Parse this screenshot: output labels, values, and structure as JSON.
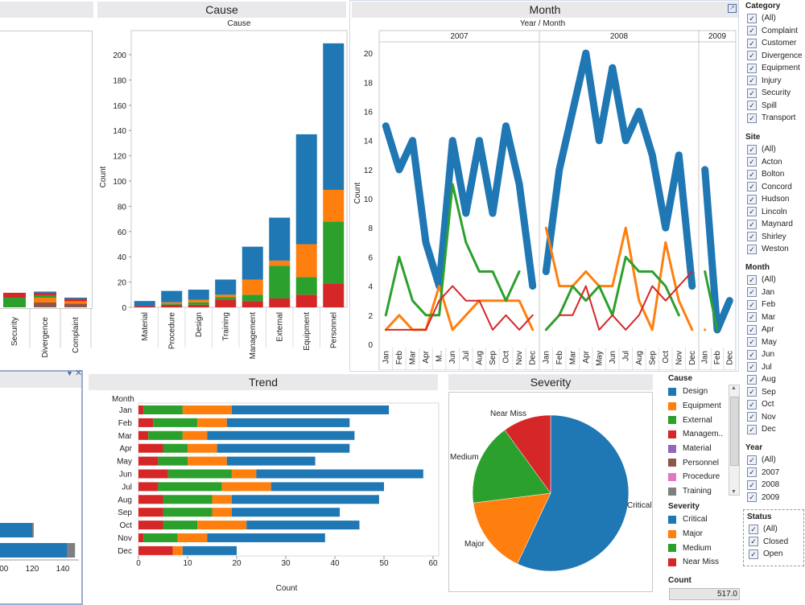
{
  "panels": {
    "cause": {
      "title": "Cause",
      "subtitle": "Cause",
      "ylabel": "Count"
    },
    "month": {
      "title": "Month",
      "header": "Year  /  Month",
      "ylabel": "Count",
      "years": [
        "2007",
        "2008",
        "2009"
      ]
    },
    "trend": {
      "title": "Trend",
      "row_header": "Month",
      "xlabel": "Count"
    },
    "severity": {
      "title": "Severity"
    }
  },
  "chart_data": [
    {
      "type": "bar",
      "name": "category_partial",
      "categories": [
        "Security",
        "Divergence",
        "Complaint"
      ],
      "series": [
        {
          "name": "Personnel",
          "values": [
            0,
            4,
            3
          ]
        },
        {
          "name": "Equipment",
          "values": [
            0,
            4,
            2
          ]
        },
        {
          "name": "External",
          "values": [
            8,
            2,
            0
          ]
        },
        {
          "name": "Management",
          "values": [
            4,
            2,
            2
          ]
        },
        {
          "name": "Design",
          "values": [
            0,
            1,
            1
          ]
        }
      ],
      "ylim": [
        0,
        210
      ]
    },
    {
      "type": "bar",
      "name": "cause",
      "title": "Cause",
      "ylabel": "Count",
      "ylim": [
        0,
        210
      ],
      "yticks": [
        0,
        20,
        40,
        60,
        80,
        100,
        120,
        140,
        160,
        180,
        200
      ],
      "categories": [
        "Material",
        "Procedure",
        "Design",
        "Training",
        "Management",
        "External",
        "Equipment",
        "Personnel"
      ],
      "series": [
        {
          "name": "Critical",
          "values": [
            4,
            9,
            8,
            12,
            26,
            34,
            87,
            116
          ]
        },
        {
          "name": "Major",
          "values": [
            0,
            1,
            2,
            2,
            12,
            4,
            26,
            25
          ]
        },
        {
          "name": "Medium",
          "values": [
            0,
            1,
            2,
            2,
            5,
            26,
            14,
            49
          ]
        },
        {
          "name": "Near Miss",
          "values": [
            1,
            2,
            2,
            6,
            5,
            7,
            10,
            19
          ]
        }
      ]
    },
    {
      "type": "line",
      "name": "month",
      "title": "Month",
      "ylabel": "Count",
      "ylim": [
        0,
        21
      ],
      "yticks": [
        0,
        2,
        4,
        6,
        8,
        10,
        12,
        14,
        16,
        18,
        20
      ],
      "years": [
        "2007",
        "2008",
        "2009"
      ],
      "xlabels": [
        [
          "Jan",
          "Feb",
          "Mar",
          "Apr",
          "M..",
          "Jun",
          "Jul",
          "Aug",
          "Sep",
          "Oct",
          "Nov",
          "Dec"
        ],
        [
          "Jan",
          "Feb",
          "Mar",
          "Apr",
          "May",
          "Jun",
          "Jul",
          "Aug",
          "Sep",
          "Oct",
          "Nov",
          "Dec"
        ],
        [
          "Jan",
          "Feb",
          "Dec"
        ]
      ],
      "series": [
        {
          "name": "Critical",
          "color": "#1f77b4",
          "width": 9,
          "values": [
            [
              15,
              12,
              14,
              7,
              4,
              14,
              9,
              14,
              9,
              15,
              11,
              4
            ],
            [
              5,
              12,
              16,
              20,
              14,
              19,
              14,
              16,
              13,
              8,
              13,
              4
            ],
            [
              12,
              1,
              3
            ]
          ]
        },
        {
          "name": "Major",
          "color": "#ff7f0e",
          "width": 3,
          "values": [
            [
              1,
              2,
              1,
              1,
              4,
              1,
              2,
              3,
              3,
              3,
              3,
              1
            ],
            [
              8,
              4,
              4,
              5,
              4,
              4,
              8,
              3,
              1,
              7,
              3,
              1
            ],
            [
              1,
              null,
              null
            ]
          ]
        },
        {
          "name": "Medium",
          "color": "#2ca02c",
          "width": 3,
          "values": [
            [
              2,
              6,
              3,
              2,
              2,
              11,
              7,
              5,
              5,
              3,
              5,
              null
            ],
            [
              1,
              2,
              4,
              3,
              4,
              2,
              6,
              5,
              5,
              4,
              2,
              null
            ],
            [
              5,
              1,
              null
            ]
          ]
        },
        {
          "name": "Near Miss",
          "color": "#d62728",
          "width": 2,
          "values": [
            [
              1,
              1,
              1,
              1,
              3,
              4,
              3,
              3,
              1,
              2,
              1,
              2
            ],
            [
              null,
              2,
              2,
              4,
              1,
              2,
              1,
              2,
              4,
              3,
              4,
              5
            ],
            [
              null,
              null,
              null
            ]
          ]
        }
      ]
    },
    {
      "type": "bar",
      "name": "trend",
      "title": "Trend",
      "xlabel": "Count",
      "xlim": [
        0,
        60
      ],
      "xticks": [
        0,
        10,
        20,
        30,
        40,
        50,
        60
      ],
      "categories": [
        "Jan",
        "Feb",
        "Mar",
        "Apr",
        "May",
        "Jun",
        "Jul",
        "Aug",
        "Sep",
        "Oct",
        "Nov",
        "Dec"
      ],
      "series": [
        {
          "name": "Near Miss",
          "values": [
            1,
            3,
            2,
            5,
            4,
            6,
            4,
            5,
            5,
            5,
            1,
            7
          ]
        },
        {
          "name": "Medium",
          "values": [
            8,
            9,
            7,
            5,
            6,
            13,
            13,
            10,
            10,
            7,
            7,
            0
          ]
        },
        {
          "name": "Major",
          "values": [
            10,
            6,
            5,
            6,
            8,
            5,
            10,
            4,
            4,
            10,
            6,
            2
          ]
        },
        {
          "name": "Critical",
          "values": [
            32,
            25,
            30,
            27,
            18,
            34,
            23,
            30,
            22,
            23,
            24,
            11
          ]
        }
      ]
    },
    {
      "type": "pie",
      "name": "severity",
      "title": "Severity",
      "labels": [
        "Critical",
        "Major",
        "Medium",
        "Near Miss"
      ],
      "values": [
        57,
        16,
        17,
        10
      ]
    },
    {
      "type": "bar",
      "name": "bottom_left_partial",
      "xticks": [
        100,
        120,
        140
      ],
      "series": [
        {
          "name": "Critical",
          "values": [
            120,
            143
          ]
        },
        {
          "name": "Training",
          "values": [
            1,
            5
          ]
        }
      ]
    }
  ],
  "colors": {
    "critical": "#1f77b4",
    "major": "#ff7f0e",
    "medium": "#2ca02c",
    "near_miss": "#d62728",
    "design": "#1f77b4",
    "equipment": "#ff7f0e",
    "external": "#2ca02c",
    "management": "#d62728",
    "material": "#9467bd",
    "personnel": "#8c564b",
    "procedure": "#e377c2",
    "training": "#7f7f7f"
  },
  "filters": {
    "category": {
      "title": "Category",
      "items": [
        "(All)",
        "Complaint",
        "Customer",
        "Divergence",
        "Equipment",
        "Injury",
        "Security",
        "Spill",
        "Transport"
      ]
    },
    "site": {
      "title": "Site",
      "items": [
        "(All)",
        "Acton",
        "Bolton",
        "Concord",
        "Hudson",
        "Lincoln",
        "Maynard",
        "Shirley",
        "Weston"
      ]
    },
    "month": {
      "title": "Month",
      "items": [
        "(All)",
        "Jan",
        "Feb",
        "Mar",
        "Apr",
        "May",
        "Jun",
        "Jul",
        "Aug",
        "Sep",
        "Oct",
        "Nov",
        "Dec"
      ]
    },
    "year": {
      "title": "Year",
      "items": [
        "(All)",
        "2007",
        "2008",
        "2009"
      ]
    },
    "status": {
      "title": "Status",
      "items": [
        "(All)",
        "Closed",
        "Open"
      ]
    }
  },
  "legends": {
    "cause": {
      "title": "Cause",
      "items": [
        {
          "label": "Design",
          "color": "#1f77b4"
        },
        {
          "label": "Equipment",
          "color": "#ff7f0e"
        },
        {
          "label": "External",
          "color": "#2ca02c"
        },
        {
          "label": "Managem..",
          "color": "#d62728"
        },
        {
          "label": "Material",
          "color": "#9467bd"
        },
        {
          "label": "Personnel",
          "color": "#8c564b"
        },
        {
          "label": "Procedure",
          "color": "#e377c2"
        },
        {
          "label": "Training",
          "color": "#7f7f7f"
        }
      ]
    },
    "severity": {
      "title": "Severity",
      "items": [
        {
          "label": "Critical",
          "color": "#1f77b4"
        },
        {
          "label": "Major",
          "color": "#ff7f0e"
        },
        {
          "label": "Medium",
          "color": "#2ca02c"
        },
        {
          "label": "Near Miss",
          "color": "#d62728"
        }
      ]
    }
  },
  "count": {
    "title": "Count",
    "value": "517.0"
  },
  "icons": {
    "popout": "popout-icon",
    "dropdown": "dropdown-arrow-icon",
    "close": "close-icon"
  }
}
